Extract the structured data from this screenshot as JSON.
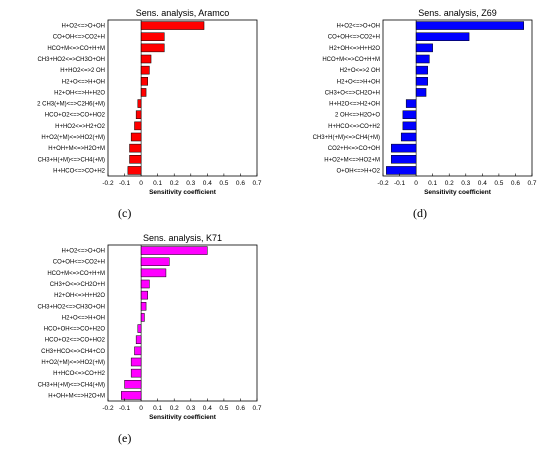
{
  "chart_data": [
    {
      "type": "bar",
      "orientation": "horizontal",
      "title": "Sens. analysis, Aramco",
      "xlabel": "Sensitivity coefficient",
      "xlim": [
        -0.2,
        0.7
      ],
      "xticks": [
        "-0.2",
        "-0.1",
        "0",
        "0.1",
        "0.2",
        "0.3",
        "0.4",
        "0.5",
        "0.6",
        "0.7"
      ],
      "color": "#ff0000",
      "caption": "(c)",
      "grid": false,
      "categories": [
        "H+O2<=>O+OH",
        "CO+OH<=>CO2+H",
        "HCO+M<=>CO+H+M",
        "CH3+HO2<=>CH3O+OH",
        "H+HO2<=>2 OH",
        "H2+O<=>H+OH",
        "H2+OH<=>H+H2O",
        "2 CH3(+M)<=>C2H6(+M)",
        "HCO+O2<=>CO+HO2",
        "H+HO2<=>H2+O2",
        "H+O2(+M)<=>HO2(+M)",
        "H+OH+M<=>H2O+M",
        "CH3+H(+M)<=>CH4(+M)",
        "H+HCO<=>CO+H2"
      ],
      "values": [
        0.38,
        0.14,
        0.14,
        0.06,
        0.05,
        0.04,
        0.03,
        -0.02,
        -0.03,
        -0.04,
        -0.06,
        -0.07,
        -0.07,
        -0.08
      ]
    },
    {
      "type": "bar",
      "orientation": "horizontal",
      "title": "Sens. analysis, Z69",
      "xlabel": "Sensitivity coefficient",
      "xlim": [
        -0.2,
        0.7
      ],
      "xticks": [
        "-0.2",
        "-0.1",
        "0",
        "0.1",
        "0.2",
        "0.3",
        "0.4",
        "0.5",
        "0.6",
        "0.7"
      ],
      "color": "#0000ff",
      "caption": "(d)",
      "grid": false,
      "categories": [
        "H+O2<=>O+OH",
        "CO+OH<=>CO2+H",
        "H2+OH<=>H+H2O",
        "HCO+M<=>CO+H+M",
        "H2+O<=>2 OH",
        "H2+O<=>H+OH",
        "CH3+O<=>CH2O+H",
        "H+H2O<=>H2+OH",
        "2 OH<=>H2O+O",
        "H+HCO<=>CO+H2",
        "CH3+H(+M)<=>CH4(+M)",
        "CO2+H<=>CO+OH",
        "H+O2+M<=>HO2+M",
        "O+OH<=>H+O2"
      ],
      "values": [
        0.65,
        0.32,
        0.1,
        0.08,
        0.07,
        0.07,
        0.06,
        -0.06,
        -0.08,
        -0.08,
        -0.09,
        -0.15,
        -0.15,
        -0.18
      ]
    },
    {
      "type": "bar",
      "orientation": "horizontal",
      "title": "Sens. analysis, K71",
      "xlabel": "Sensitivity coefficient",
      "xlim": [
        -0.2,
        0.7
      ],
      "xticks": [
        "-0.2",
        "-0.1",
        "0",
        "0.1",
        "0.2",
        "0.3",
        "0.4",
        "0.5",
        "0.6",
        "0.7"
      ],
      "color": "#ff00ff",
      "caption": "(e)",
      "grid": false,
      "categories": [
        "H+O2<=>O+OH",
        "CO+OH<=>CO2+H",
        "HCO+M<=>CO+H+M",
        "CH3+O<=>CH2O+H",
        "H2+OH<=>H+H2O",
        "CH3+HO2<=>CH3O+OH",
        "H2+O<=>H+OH",
        "HCO+OH<=>CO+H2O",
        "HCO+O2<=>CO+HO2",
        "CH3+HCO<=>CH4+CO",
        "H+O2(+M)<=>HO2(+M)",
        "H+HCO<=>CO+H2",
        "CH3+H(+M)<=>CH4(+M)",
        "H+OH+M<=>H2O+M"
      ],
      "values": [
        0.4,
        0.17,
        0.15,
        0.05,
        0.04,
        0.03,
        0.02,
        -0.02,
        -0.03,
        -0.04,
        -0.06,
        -0.06,
        -0.1,
        -0.12
      ]
    }
  ]
}
